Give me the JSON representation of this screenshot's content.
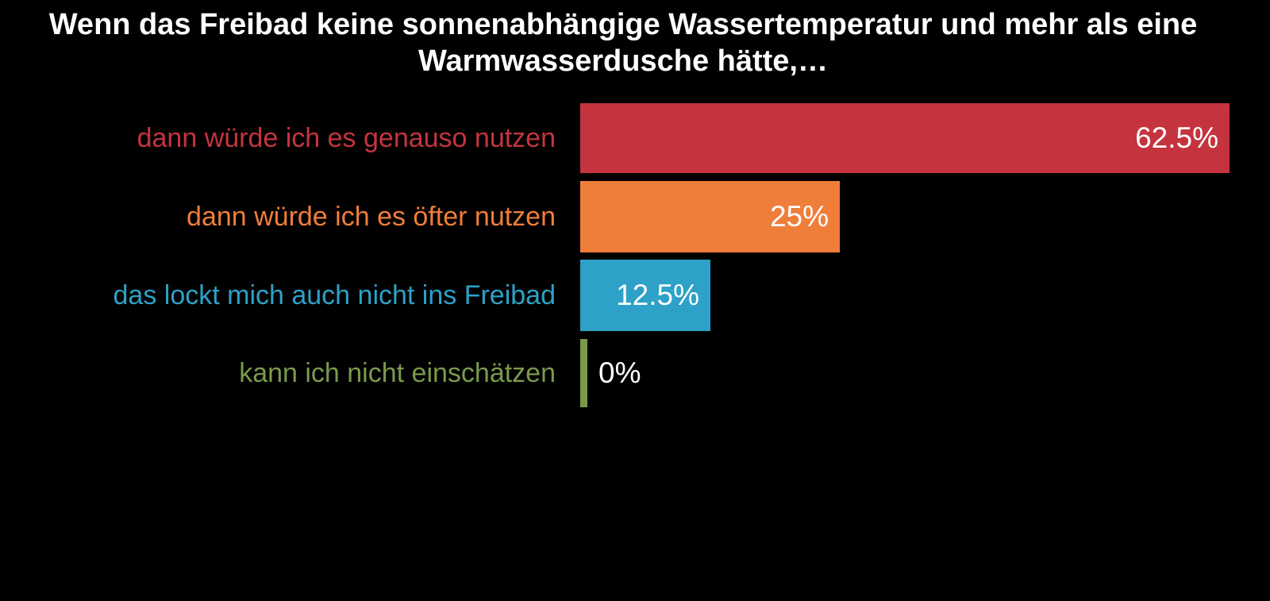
{
  "chart_data": {
    "type": "bar",
    "orientation": "horizontal",
    "title": "Wenn das Freibad keine sonnenabhängige Wassertemperatur und mehr als eine Warmwasserdusche hätte,…",
    "title_lines": [
      "Wenn das Freibad keine sonnenabhängige Wassertemperatur und mehr als eine",
      "Warmwasserdusche hätte,…"
    ],
    "categories": [
      "dann würde ich es genauso nutzen",
      "dann würde ich es öfter nutzen",
      "das lockt mich auch nicht ins Freibad",
      "kann ich nicht einschätzen"
    ],
    "values": [
      62.5,
      25,
      12.5,
      0
    ],
    "value_labels": [
      "62.5%",
      "25%",
      "12.5%",
      "0%"
    ],
    "series_colors": [
      "#C5343E",
      "#EF7E3A",
      "#2DA1C7",
      "#7A9A4B"
    ],
    "label_colors": [
      "#C5343E",
      "#EF7E3A",
      "#2DA1C7",
      "#7A9A4B"
    ],
    "value_label_color": "#FFFFFF",
    "title_color": "#FFFFFF",
    "background_color": "#000000",
    "xlim": [
      0,
      62.5
    ],
    "grid": false,
    "legend": "none"
  }
}
